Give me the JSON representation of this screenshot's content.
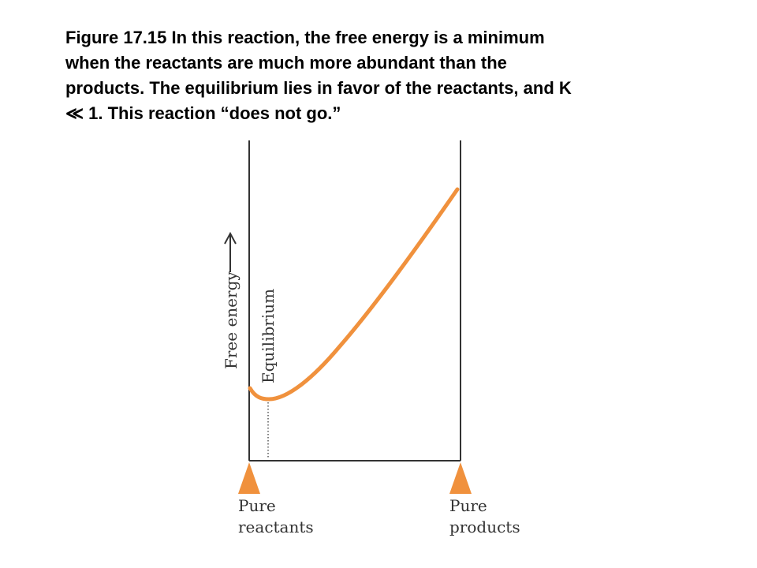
{
  "caption": {
    "lines": [
      "Figure 17.15 In this reaction, the free energy is a minimum",
      "when the reactants are much more abundant than the",
      "products. The equilibrium lies in favor of the reactants, and K",
      "≪ 1. This reaction “does not go.”"
    ]
  },
  "diagram": {
    "y_axis_label": "Free energy",
    "equilibrium_label": "Equilibrium",
    "left_marker": {
      "line1": "Pure",
      "line2": "reactants"
    },
    "right_marker": {
      "line1": "Pure",
      "line2": "products"
    },
    "colors": {
      "curve": "#f0913d",
      "marker": "#f0913d",
      "frame": "#333333",
      "text": "#333333"
    }
  }
}
